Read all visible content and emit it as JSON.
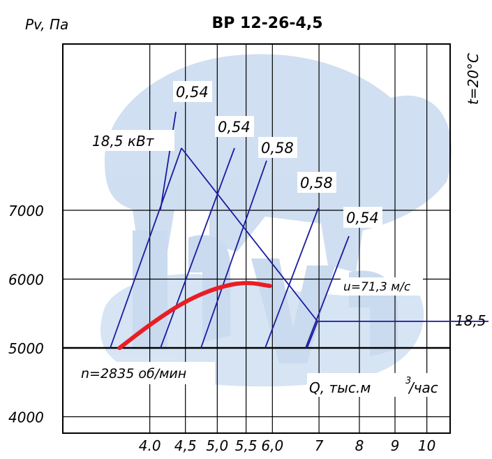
{
  "chart_data": {
    "type": "line",
    "title": "ВР 12-26-4,5",
    "ylabel": "Pv, Па",
    "xlabel": "Q, тыс.м",
    "xlabel_sup": "3",
    "xlabel_suffix": "/час",
    "temperature_label": "t=20°С",
    "y_ticks": [
      "7000",
      "6000",
      "5000",
      "4000"
    ],
    "y_tick_values": [
      7000,
      6000,
      5000,
      4000
    ],
    "x_ticks": [
      "4.0",
      "4,5",
      "5,0",
      "5,5",
      "6,0",
      "7",
      "8",
      "9",
      "10"
    ],
    "x_tick_values": [
      4.0,
      4.5,
      5.0,
      5.5,
      6.0,
      7,
      8,
      9,
      10
    ],
    "ylim": [
      3800,
      9000
    ],
    "grid": true,
    "speed_label": "n=2835 об/мин",
    "velocity_label": "u=71,3 м/с",
    "power_label": "18,5 кВт",
    "power_right_label": "18,5",
    "efficiency_labels": [
      "0,54",
      "0,54",
      "0,58",
      "0,58",
      "0,54"
    ],
    "colors": {
      "curve": "#e81e25",
      "lines": "#1a1aa0",
      "grid": "#000000"
    },
    "series": [
      {
        "values": [
          {
            "x": 3.62,
            "y": 5000
          },
          {
            "x": 4.05,
            "y": 5380
          },
          {
            "x": 4.5,
            "y": 5680
          },
          {
            "x": 5.0,
            "y": 5880
          },
          {
            "x": 5.5,
            "y": 5960
          },
          {
            "x": 5.95,
            "y": 5900
          }
        ]
      }
    ]
  }
}
